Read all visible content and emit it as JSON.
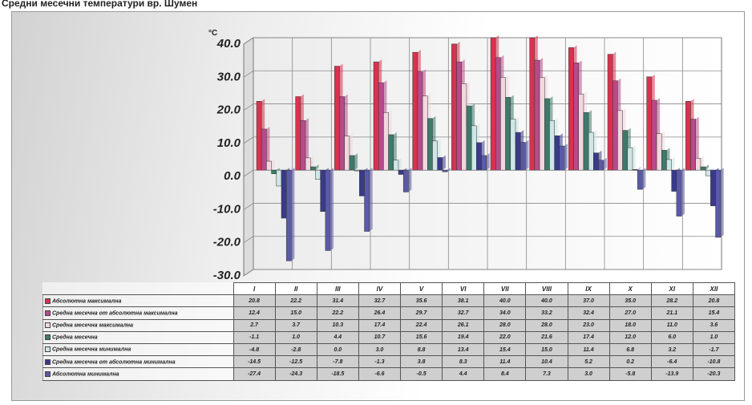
{
  "header": {
    "text": "Средни месечни температури вр. Шумен"
  },
  "chart_data": {
    "type": "bar",
    "unit": "°C",
    "ylim": [
      -30,
      40
    ],
    "yticks": [
      "40.0",
      "30.0",
      "20.0",
      "10.0",
      "0.0",
      "-10.0",
      "-20.0",
      "-30.0"
    ],
    "grid": true,
    "legend": "table-below",
    "categories": [
      "I",
      "II",
      "III",
      "IV",
      "V",
      "VI",
      "VII",
      "VIII",
      "IX",
      "X",
      "XI",
      "XII"
    ],
    "series": [
      {
        "name": "Абсолютна максимална",
        "color": "#d8324f",
        "values": [
          20.8,
          22.2,
          31.4,
          32.7,
          35.6,
          38.1,
          40.0,
          40.0,
          37.0,
          35.0,
          28.2,
          20.8
        ],
        "labels": [
          "20.8",
          "22.2",
          "31.4",
          "32.7",
          "35.6",
          "38.1",
          "40.0",
          "40.0",
          "37.0",
          "35.0",
          "28.2",
          "20.8"
        ]
      },
      {
        "name": "Средна месечна от абсолютна максимална",
        "color": "#b94a8a",
        "values": [
          12.4,
          15.0,
          22.2,
          26.4,
          29.7,
          32.7,
          34.0,
          33.2,
          32.4,
          27.0,
          21.1,
          15.4
        ],
        "labels": [
          "12.4",
          "15.0",
          "22.2",
          "26.4",
          "29.7",
          "32.7",
          "34.0",
          "33.2",
          "32.4",
          "27.0",
          "21.1",
          "15.4"
        ]
      },
      {
        "name": "Средна месечна максимална",
        "color": "#f2d7df",
        "values": [
          2.7,
          3.7,
          10.3,
          17.4,
          22.4,
          26.1,
          28.0,
          28.0,
          23.0,
          18.0,
          11.0,
          3.6
        ],
        "labels": [
          "2.7",
          "3.7",
          "10.3",
          "17.4",
          "22.4",
          "26.1",
          "28.0",
          "28.0",
          "23.0",
          "18.0",
          "11.0",
          "3.6"
        ]
      },
      {
        "name": "Средна месечна",
        "color": "#3d7a6a",
        "values": [
          -1.1,
          1.0,
          4.4,
          10.7,
          15.6,
          19.4,
          22.0,
          21.6,
          17.4,
          12.0,
          6.0,
          1.0
        ],
        "labels": [
          "-1.1",
          "1.0",
          "4.4",
          "10.7",
          "15.6",
          "19.4",
          "22.0",
          "21.6",
          "17.4",
          "12.0",
          "6.0",
          "1.0"
        ]
      },
      {
        "name": "Средна месечна минимална",
        "color": "#cfe6e6",
        "values": [
          -4.8,
          -2.8,
          0.0,
          3.0,
          8.8,
          13.4,
          15.4,
          15.0,
          11.4,
          6.8,
          3.2,
          -1.7
        ],
        "labels": [
          "-4.8",
          "-2.8",
          "0.0",
          "3.0",
          "8.8",
          "13.4",
          "15.4",
          "15.0",
          "11.4",
          "6.8",
          "3.2",
          "-1.7"
        ]
      },
      {
        "name": "Средна месечна от абсолютна минимална",
        "color": "#3a3a8a",
        "values": [
          -14.5,
          -12.5,
          -7.8,
          -1.3,
          3.8,
          8.3,
          11.4,
          10.4,
          5.2,
          0.2,
          -6.4,
          -10.8
        ],
        "labels": [
          "-14.5",
          "-12.5",
          "-7.8",
          "-1.3",
          "3.8",
          "8.3",
          "11.4",
          "10.4",
          "5.2",
          "0.2",
          "-6.4",
          "-10.8"
        ]
      },
      {
        "name": "Абсолютна минимална",
        "color": "#5a5aa8",
        "values": [
          -27.4,
          -24.3,
          -18.5,
          -6.6,
          -0.5,
          4.4,
          8.4,
          7.3,
          3.0,
          -5.8,
          -13.9,
          -20.3
        ],
        "labels": [
          "-27.4",
          "-24.3",
          "-18.5",
          "-6.6",
          "-0.5",
          "4.4",
          "8.4",
          "7.3",
          "3.0",
          "-5.8",
          "-13.9",
          "-20.3"
        ]
      }
    ]
  }
}
